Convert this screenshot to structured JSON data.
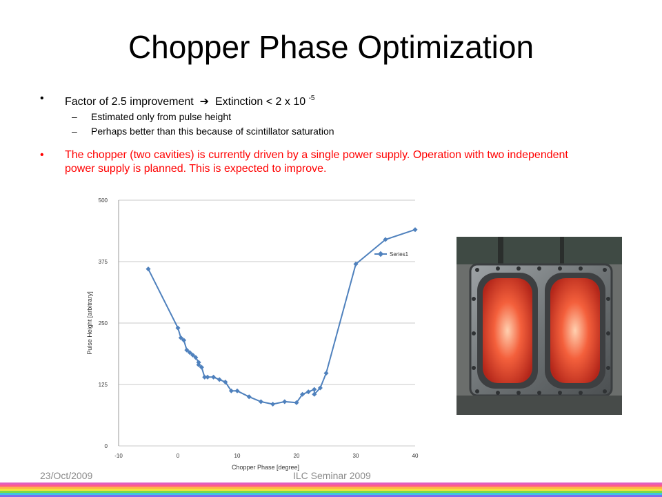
{
  "slide": {
    "title": "Chopper Phase Optimization",
    "bullet1": {
      "text": "Factor of 2.5 improvement",
      "arrow": "➔",
      "text2": "Extinction  < 2 x 10",
      "exponent": "-5",
      "subs": [
        "Estimated only from pulse height",
        "Perhaps better than this because of scintillator saturation"
      ]
    },
    "bullet2": {
      "text": "The chopper (two cavities) is currently driven by a single power supply. Operation with two independent power supply is planned. This is expected to improve."
    },
    "footer": {
      "date": "23/Oct/2009",
      "center": "ILC Seminar 2009"
    },
    "accent_red": "#ff0000",
    "series_color": "#4f81bd",
    "photo_description": "chopper-cavity-photo"
  },
  "chart_data": {
    "type": "scatter",
    "xlabel": "Chopper Phase [degree]",
    "ylabel": "Pulse Height [arbitrary]",
    "xlim": [
      -10,
      40
    ],
    "ylim": [
      0,
      500
    ],
    "x_ticks": [
      "-10",
      "0",
      "10",
      "20",
      "30",
      "40"
    ],
    "y_ticks": [
      "0",
      "125",
      "250",
      "375",
      "500"
    ],
    "grid": "horizontal",
    "legend": "right",
    "series": [
      {
        "name": "Series1",
        "x": [
          -5,
          0,
          0.5,
          1,
          1.5,
          2,
          2.5,
          3,
          3.5,
          3.5,
          4,
          4.5,
          5,
          6,
          7,
          8,
          9,
          10,
          12,
          14,
          16,
          18,
          20,
          21,
          22,
          23,
          23,
          24,
          25,
          30,
          35,
          40
        ],
        "y": [
          360,
          240,
          220,
          215,
          195,
          190,
          185,
          180,
          170,
          165,
          160,
          140,
          140,
          140,
          135,
          130,
          112,
          112,
          100,
          90,
          85,
          90,
          88,
          105,
          110,
          115,
          105,
          118,
          148,
          370,
          420,
          440
        ]
      }
    ]
  }
}
